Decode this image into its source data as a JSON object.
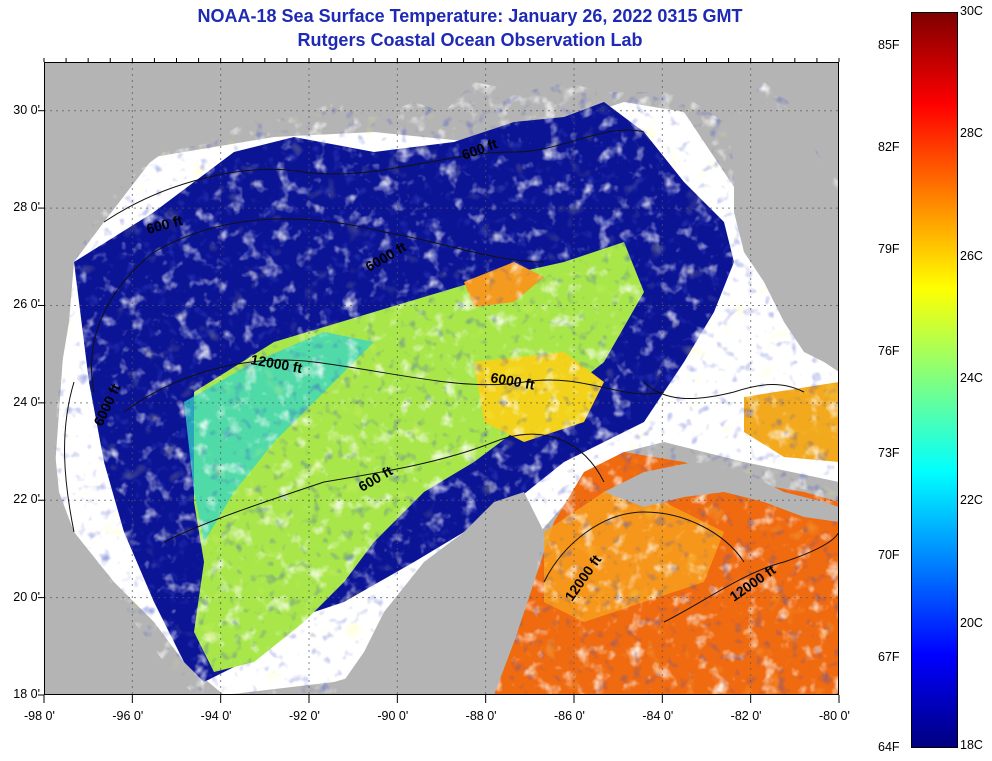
{
  "header": {
    "title": "NOAA-18 Sea Surface Temperature:  January 26, 2022 0315 GMT",
    "subtitle": "Rutgers Coastal Ocean Observation Lab"
  },
  "axes": {
    "x_ticks": [
      "-98 0'",
      "-96 0'",
      "-94 0'",
      "-92 0'",
      "-90 0'",
      "-88 0'",
      "-86 0'",
      "-84 0'",
      "-82 0'",
      "-80 0'"
    ],
    "y_ticks": [
      "30 0'",
      "28 0'",
      "26 0'",
      "24 0'",
      "22 0'",
      "20 0'",
      "18 0'"
    ],
    "lon_range": [
      -98,
      -80
    ],
    "lat_range": [
      18,
      31
    ]
  },
  "isobath_labels": [
    "600 ft",
    "600 ft",
    "6000 ft",
    "12000 ft",
    "6000 ft",
    "6000 ft",
    "600 ft",
    "12000 ft",
    "12000 ft"
  ],
  "colorbar": {
    "fahrenheit_labels": [
      "85F",
      "82F",
      "79F",
      "76F",
      "73F",
      "70F",
      "67F",
      "64F"
    ],
    "celsius_labels": [
      "30C",
      "28C",
      "26C",
      "24C",
      "22C",
      "20C",
      "18C"
    ],
    "range_c": [
      18,
      30
    ],
    "colors": [
      "#00007f",
      "#0000ff",
      "#0080ff",
      "#00ffff",
      "#80ff80",
      "#ffff00",
      "#ff8000",
      "#ff0000",
      "#7f0000"
    ]
  },
  "colors": {
    "land": "#b4b4b4",
    "cloud": "#ffffff",
    "cold": "#0c1496",
    "title": "#1f2ab4"
  }
}
